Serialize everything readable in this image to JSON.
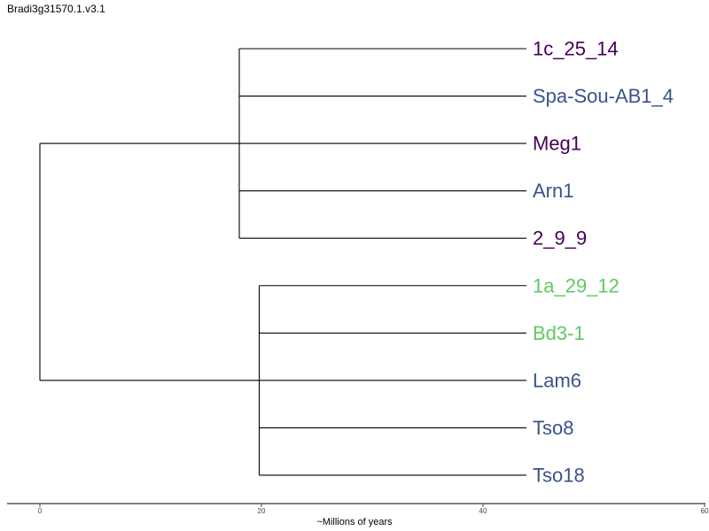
{
  "title": "Bradi3g31570.1.v3.1",
  "axis": {
    "label": "~Millions of years",
    "ticks": [
      0,
      20,
      40,
      60
    ],
    "range": [
      0,
      60
    ]
  },
  "colors": {
    "purple": "#440154",
    "blue": "#3b528b",
    "green": "#5ec962"
  },
  "tree": {
    "depth": 0,
    "children": [
      {
        "depth": 18,
        "children": [
          {
            "label": "1c_25_14",
            "color": "purple"
          },
          {
            "label": "Spa-Sou-AB1_4",
            "color": "blue"
          },
          {
            "label": "Meg1",
            "color": "purple"
          },
          {
            "label": "Arn1",
            "color": "blue"
          },
          {
            "label": "2_9_9",
            "color": "purple"
          }
        ]
      },
      {
        "depth": 19.8,
        "children": [
          {
            "label": "1a_29_12",
            "color": "green"
          },
          {
            "label": "Bd3-1",
            "color": "green"
          },
          {
            "label": "Lam6",
            "color": "blue"
          },
          {
            "label": "Tso8",
            "color": "blue"
          },
          {
            "label": "Tso18",
            "color": "blue"
          }
        ]
      }
    ]
  }
}
